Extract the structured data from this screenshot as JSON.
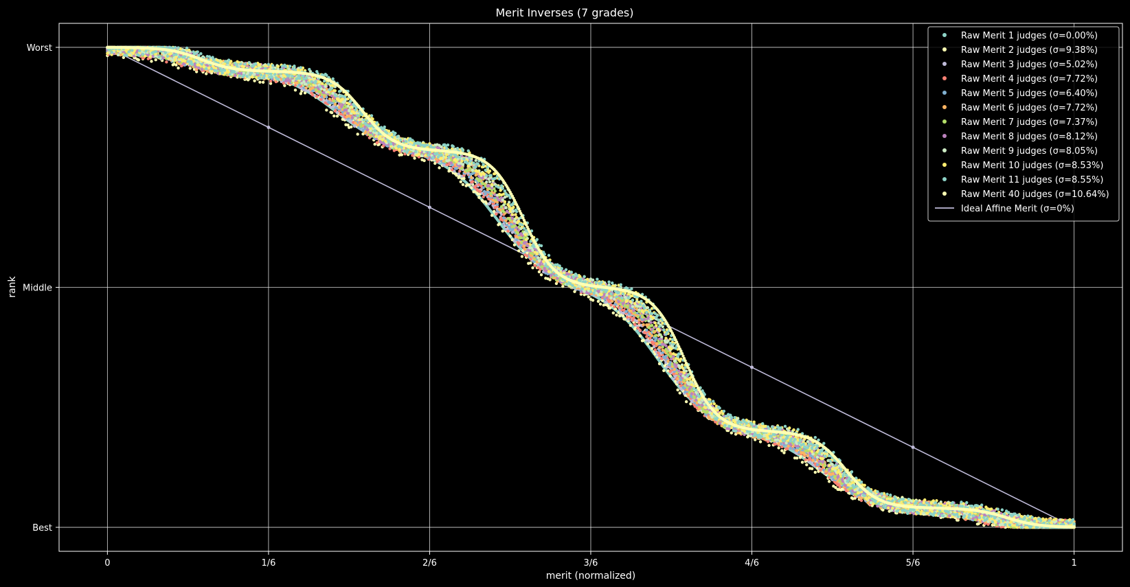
{
  "chart_data": {
    "type": "scatter",
    "title": "Merit Inverses (7 grades)",
    "xlabel": "merit (normalized)",
    "ylabel": "rank",
    "xlim": [
      -0.05,
      1.05
    ],
    "ylim": [
      -0.1,
      2.1
    ],
    "x_ticks": [
      {
        "value": 0,
        "label": "0"
      },
      {
        "value": 0.16667,
        "label": "1/6"
      },
      {
        "value": 0.33333,
        "label": "2/6"
      },
      {
        "value": 0.5,
        "label": "3/6"
      },
      {
        "value": 0.66667,
        "label": "4/6"
      },
      {
        "value": 0.83333,
        "label": "5/6"
      },
      {
        "value": 1,
        "label": "1"
      }
    ],
    "y_ticks": [
      {
        "value": 2,
        "label": "Worst"
      },
      {
        "value": 1,
        "label": "Middle"
      },
      {
        "value": 0,
        "label": "Best"
      }
    ],
    "grid": true,
    "legend_position": "top-right",
    "grades": 7,
    "series": [
      {
        "name": "Raw Merit 1 judges (σ=0.00%)",
        "color": "#8dd3c7",
        "judges": 1,
        "sigma_percent": 0.0,
        "kind": "scatter"
      },
      {
        "name": "Raw Merit 2 judges (σ=9.38%)",
        "color": "#feffb3",
        "judges": 2,
        "sigma_percent": 9.38,
        "kind": "scatter"
      },
      {
        "name": "Raw Merit 3 judges (σ=5.02%)",
        "color": "#bfbbd9",
        "judges": 3,
        "sigma_percent": 5.02,
        "kind": "scatter"
      },
      {
        "name": "Raw Merit 4 judges (σ=7.72%)",
        "color": "#fa8174",
        "judges": 4,
        "sigma_percent": 7.72,
        "kind": "scatter"
      },
      {
        "name": "Raw Merit 5 judges (σ=6.40%)",
        "color": "#81b1d2",
        "judges": 5,
        "sigma_percent": 6.4,
        "kind": "scatter"
      },
      {
        "name": "Raw Merit 6 judges (σ=7.72%)",
        "color": "#fdb462",
        "judges": 6,
        "sigma_percent": 7.72,
        "kind": "scatter"
      },
      {
        "name": "Raw Merit 7 judges (σ=7.37%)",
        "color": "#b3de69",
        "judges": 7,
        "sigma_percent": 7.37,
        "kind": "scatter"
      },
      {
        "name": "Raw Merit 8 judges (σ=8.12%)",
        "color": "#bc82bd",
        "judges": 8,
        "sigma_percent": 8.12,
        "kind": "scatter"
      },
      {
        "name": "Raw Merit 9 judges (σ=8.05%)",
        "color": "#ccebc4",
        "judges": 9,
        "sigma_percent": 8.05,
        "kind": "scatter"
      },
      {
        "name": "Raw Merit 10 judges (σ=8.53%)",
        "color": "#ffed6f",
        "judges": 10,
        "sigma_percent": 8.53,
        "kind": "scatter"
      },
      {
        "name": "Raw Merit 11 judges (σ=8.55%)",
        "color": "#8dd3c7",
        "judges": 11,
        "sigma_percent": 8.55,
        "kind": "scatter"
      },
      {
        "name": "Raw Merit 40 judges (σ=10.64%)",
        "color": "#feffb3",
        "judges": 40,
        "sigma_percent": 10.64,
        "kind": "scatter"
      },
      {
        "name": "Ideal Affine Merit (σ=0%)",
        "color": "#bfbbd9",
        "kind": "line",
        "x": [
          0,
          1
        ],
        "y": [
          2,
          0
        ]
      }
    ]
  }
}
